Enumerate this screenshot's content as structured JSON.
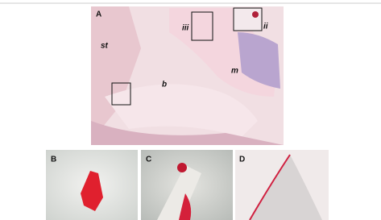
{
  "panel_a": {
    "label": "A",
    "annotations": [
      "st",
      "iii",
      "ii",
      "b",
      "m"
    ]
  },
  "panels": [
    {
      "label": "B"
    },
    {
      "label": "C"
    },
    {
      "label": "D"
    }
  ]
}
